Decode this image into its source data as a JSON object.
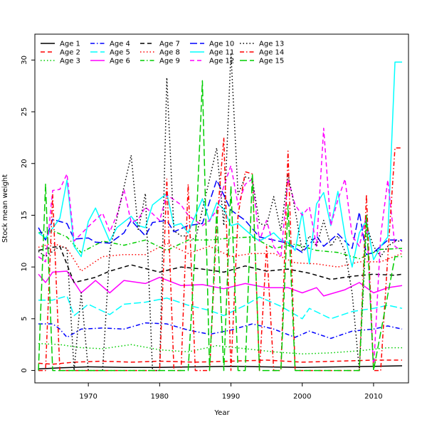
{
  "chart_data": {
    "type": "line",
    "title": "",
    "xlabel": "Year",
    "ylabel": "Stock mean weight",
    "xlim": [
      1962.5,
      2014.9
    ],
    "ylim": [
      -1.2,
      32.5
    ],
    "xticks": [
      1970,
      1980,
      1990,
      2000,
      2010
    ],
    "yticks": [
      0,
      5,
      10,
      15,
      20,
      25,
      30
    ],
    "grid": false,
    "legend_position": "top-left",
    "series": [
      {
        "name": "Age 1",
        "color": "#000000",
        "dash": "solid",
        "x": [
          1963,
          1966,
          1970,
          1975,
          1980,
          1985,
          1990,
          1995,
          2000,
          2005,
          2010,
          2014
        ],
        "values": [
          0.15,
          0.25,
          0.35,
          0.3,
          0.3,
          0.35,
          0.4,
          0.35,
          0.3,
          0.35,
          0.4,
          0.45
        ]
      },
      {
        "name": "Age 2",
        "color": "#ff0000",
        "dash": "dashed",
        "x": [
          1963,
          1965,
          1968,
          1972,
          1976,
          1980,
          1985,
          1990,
          1995,
          2000,
          2005,
          2010,
          2014
        ],
        "values": [
          0.7,
          0.6,
          0.8,
          0.9,
          0.8,
          0.9,
          0.8,
          0.9,
          1.0,
          0.8,
          0.9,
          1.0,
          1.0
        ]
      },
      {
        "name": "Age 3",
        "color": "#00cd00",
        "dash": "dotted",
        "x": [
          1963,
          1966,
          1969,
          1972,
          1976,
          1980,
          1984,
          1988,
          1992,
          1996,
          2000,
          2004,
          2008,
          2012,
          2014
        ],
        "values": [
          2.6,
          2.5,
          2.2,
          2.1,
          2.5,
          2.0,
          1.8,
          2.4,
          2.1,
          1.8,
          1.6,
          1.7,
          1.9,
          2.2,
          2.2
        ]
      },
      {
        "name": "Age 4",
        "color": "#0000ff",
        "dash": "dashdot",
        "x": [
          1963,
          1965,
          1966,
          1967,
          1969,
          1972,
          1975,
          1978,
          1981,
          1984,
          1987,
          1990,
          1993,
          1996,
          1999,
          2001,
          2004,
          2007,
          2010,
          2012,
          2014
        ],
        "values": [
          4.5,
          4.5,
          4.0,
          3.2,
          4.0,
          4.1,
          4.0,
          4.6,
          4.5,
          3.9,
          3.5,
          3.9,
          4.5,
          4.0,
          3.2,
          3.8,
          3.1,
          3.8,
          4.0,
          4.3,
          4.0
        ]
      },
      {
        "name": "Age 5",
        "color": "#00ffff",
        "dash": "longdash",
        "x": [
          1963,
          1965,
          1967,
          1968,
          1970,
          1973,
          1975,
          1978,
          1981,
          1984,
          1987,
          1989,
          1992,
          1994,
          1997,
          2000,
          2001,
          2004,
          2007,
          2010,
          2012,
          2014
        ],
        "values": [
          6.8,
          6.8,
          7.2,
          5.3,
          6.4,
          5.4,
          6.4,
          6.6,
          7.0,
          6.3,
          5.8,
          5.3,
          6.3,
          7.1,
          6.2,
          5.0,
          6.0,
          5.0,
          5.7,
          6.0,
          6.3,
          6.0
        ]
      },
      {
        "name": "Age 6",
        "color": "#ff00ff",
        "dash": "solid",
        "x": [
          1963,
          1964,
          1965,
          1967,
          1969,
          1971,
          1973,
          1975,
          1978,
          1980,
          1983,
          1986,
          1989,
          1992,
          1995,
          1998,
          2000,
          2002,
          2003,
          2006,
          2008,
          2010,
          2012,
          2014
        ],
        "values": [
          9.3,
          8.5,
          9.5,
          9.6,
          7.5,
          8.7,
          7.5,
          8.7,
          8.4,
          9.0,
          8.2,
          8.3,
          7.9,
          8.4,
          8.0,
          8.0,
          7.5,
          8.0,
          7.2,
          7.8,
          8.5,
          7.5,
          8.0,
          8.2
        ]
      },
      {
        "name": "Age 7",
        "color": "#000000",
        "dash": "dashed",
        "x": [
          1963,
          1965,
          1966,
          1968,
          1971,
          1973,
          1976,
          1980,
          1983,
          1986,
          1989,
          1992,
          1995,
          1998,
          2001,
          2004,
          2007,
          2010,
          2013,
          2014
        ],
        "values": [
          11.6,
          11.9,
          12.0,
          8.5,
          9.0,
          9.6,
          10.2,
          9.5,
          10.0,
          9.8,
          9.5,
          10.1,
          9.6,
          9.8,
          9.4,
          8.8,
          9.1,
          9.3,
          9.2,
          9.3
        ]
      },
      {
        "name": "Age 8",
        "color": "#ff0000",
        "dash": "dotted",
        "x": [
          1963,
          1965,
          1967,
          1969,
          1972,
          1975,
          1978,
          1981,
          1984,
          1987,
          1990,
          1993,
          1996,
          1999,
          2002,
          2005,
          2008,
          2011,
          2014
        ],
        "values": [
          11.9,
          12.3,
          11.8,
          9.6,
          11.0,
          11.2,
          11.2,
          12.3,
          11.3,
          12.0,
          11.0,
          11.3,
          11.3,
          10.4,
          10.3,
          10.0,
          10.5,
          10.5,
          11.3
        ]
      },
      {
        "name": "Age 9",
        "color": "#00cd00",
        "dash": "dashdot",
        "x": [
          1963,
          1965,
          1967,
          1969,
          1972,
          1975,
          1978,
          1981,
          1984,
          1987,
          1990,
          1993,
          1996,
          1999,
          2002,
          2005,
          2008,
          2011,
          2014
        ],
        "values": [
          13.3,
          13.5,
          12.9,
          11.4,
          12.5,
          12.1,
          12.6,
          11.6,
          12.6,
          12.6,
          12.8,
          12.9,
          11.8,
          12.2,
          11.6,
          11.4,
          10.8,
          11.7,
          11.8
        ]
      },
      {
        "name": "Age 10",
        "color": "#0000ff",
        "dash": "longdash",
        "x": [
          1963,
          1964,
          1965,
          1967,
          1968,
          1970,
          1971,
          1973,
          1975,
          1976,
          1978,
          1979,
          1981,
          1982,
          1984,
          1986,
          1988,
          1990,
          1992,
          1994,
          1996,
          1998,
          2000,
          2002,
          2003,
          2005,
          2007,
          2008,
          2009,
          2010,
          2012,
          2013,
          2014
        ],
        "values": [
          13.8,
          12.6,
          14.6,
          14.2,
          12.7,
          12.8,
          12.4,
          12.3,
          13.3,
          14.5,
          13.0,
          14.3,
          14.5,
          13.4,
          14.0,
          14.2,
          18.4,
          15.5,
          14.5,
          12.9,
          12.6,
          12.3,
          11.4,
          13.0,
          12.0,
          13.2,
          11.8,
          15.3,
          11.2,
          11.4,
          12.6,
          12.6,
          12.6
        ]
      },
      {
        "name": "Age 11",
        "color": "#00ffff",
        "dash": "solid",
        "x": [
          1963,
          1964,
          1966,
          1967,
          1968,
          1969,
          1970,
          1971,
          1973,
          1974,
          1976,
          1977,
          1978,
          1979,
          1981,
          1982,
          1983,
          1984,
          1986,
          1987,
          1988,
          1989,
          1990,
          1991,
          1993,
          1994,
          1996,
          1997,
          1998,
          1999,
          2000,
          2001,
          2002,
          2003,
          2004,
          2005,
          2006,
          2007,
          2008,
          2009,
          2010,
          2011,
          2012,
          2013,
          2014
        ],
        "values": [
          13.3,
          12.8,
          14.7,
          18.4,
          12.0,
          11.0,
          14.4,
          15.7,
          12.5,
          13.8,
          14.9,
          14.0,
          13.8,
          16.0,
          17.1,
          14.0,
          14.2,
          13.3,
          16.6,
          14.4,
          16.2,
          15.6,
          14.0,
          14.2,
          13.0,
          12.5,
          13.3,
          12.6,
          12.4,
          11.6,
          15.3,
          10.3,
          16.1,
          17.2,
          14.0,
          17.3,
          13.0,
          10.0,
          13.3,
          14.5,
          10.7,
          12.0,
          12.9,
          29.8,
          29.8
        ]
      },
      {
        "name": "Age 12",
        "color": "#ff00ff",
        "dash": "dashed",
        "x": [
          1963,
          1964,
          1965,
          1966,
          1967,
          1968,
          1970,
          1972,
          1973,
          1974,
          1975,
          1976,
          1977,
          1978,
          1980,
          1981,
          1983,
          1984,
          1986,
          1987,
          1988,
          1989,
          1990,
          1991,
          1992,
          1993,
          1994,
          1995,
          1996,
          1997,
          1998,
          1999,
          2000,
          2001,
          2002,
          2003,
          2004,
          2005,
          2006,
          2007,
          2008,
          2009,
          2010,
          2011,
          2012,
          2013,
          2014
        ],
        "values": [
          11.0,
          10.5,
          17.4,
          17.5,
          19.0,
          12.5,
          13.9,
          15.2,
          13.4,
          15.0,
          17.5,
          14.3,
          14.6,
          15.8,
          14.5,
          17.0,
          16.0,
          15.0,
          14.0,
          14.5,
          15.5,
          17.8,
          19.8,
          16.0,
          18.0,
          18.5,
          12.5,
          14.5,
          12.0,
          11.0,
          18.5,
          16.0,
          15.0,
          15.8,
          12.0,
          23.4,
          14.0,
          16.5,
          18.5,
          13.0,
          12.0,
          15.0,
          0.0,
          13.0,
          18.4,
          12.0,
          11.5
        ]
      },
      {
        "name": "Age 13",
        "color": "#000000",
        "dash": "dotted",
        "x": [
          1963,
          1964,
          1965,
          1966,
          1967,
          1968,
          1969,
          1970,
          1971,
          1972,
          1973,
          1974,
          1976,
          1977,
          1978,
          1979,
          1980,
          1981,
          1982,
          1983,
          1984,
          1985,
          1987,
          1988,
          1989,
          1990,
          1991,
          1992,
          1993,
          1994,
          1995,
          1996,
          1997,
          1998,
          1999,
          2000,
          2001,
          2002,
          2003,
          2004,
          2005,
          2006,
          2007,
          2008,
          2009,
          2010,
          2011,
          2012,
          2013,
          2014
        ],
        "values": [
          11.5,
          11.0,
          11.5,
          12.0,
          11.8,
          0.0,
          7.5,
          0.0,
          0.0,
          0.0,
          11.5,
          14.7,
          20.8,
          13.5,
          17.1,
          0.0,
          0.0,
          28.3,
          13.5,
          13.0,
          13.0,
          12.6,
          18.5,
          21.5,
          14.0,
          30.7,
          17.0,
          18.7,
          18.5,
          14.2,
          14.0,
          16.8,
          13.5,
          19.0,
          15.5,
          11.5,
          13.0,
          12.0,
          14.5,
          12.0,
          13.0,
          11.5,
          7.5,
          0.0,
          14.0,
          12.0,
          11.0,
          12.0,
          12.5,
          12.5
        ]
      },
      {
        "name": "Age 14",
        "color": "#ff0000",
        "dash": "dashdot",
        "x": [
          1963,
          1964,
          1965,
          1966,
          1967,
          1968,
          1969,
          1970,
          1971,
          1980,
          1981,
          1982,
          1983,
          1984,
          1985,
          1986,
          1987,
          1988,
          1989,
          1990,
          1991,
          1992,
          1993,
          1994,
          1995,
          1996,
          1997,
          1998,
          1999,
          2000,
          2001,
          2008,
          2009,
          2010,
          2011,
          2012,
          2013,
          2014
        ],
        "values": [
          0.0,
          0.0,
          17.0,
          0.0,
          0.0,
          0.0,
          0.0,
          0.0,
          0.0,
          0.0,
          18.5,
          0.0,
          0.0,
          18.0,
          0.0,
          0.0,
          0.0,
          14.0,
          22.5,
          0.0,
          15.0,
          19.2,
          19.0,
          0.0,
          12.0,
          0.0,
          0.0,
          21.2,
          0.0,
          0.0,
          0.0,
          0.0,
          17.0,
          0.0,
          0.0,
          11.0,
          21.5,
          21.5
        ]
      },
      {
        "name": "Age 15",
        "color": "#00cd00",
        "dash": "longdash",
        "x": [
          1963,
          1964,
          1965,
          1984,
          1985,
          1986,
          1987,
          1988,
          1989,
          1990,
          1991,
          1992,
          1993,
          1994,
          1997,
          1998,
          1999,
          2008,
          2009,
          2010,
          2013,
          2014
        ],
        "values": [
          0.0,
          18.0,
          0.0,
          0.0,
          12.0,
          28.0,
          0.0,
          15.5,
          0.0,
          17.8,
          0.0,
          0.0,
          19.0,
          0.0,
          0.0,
          16.0,
          0.0,
          0.0,
          15.0,
          0.0,
          11.0,
          11.0
        ]
      }
    ]
  }
}
